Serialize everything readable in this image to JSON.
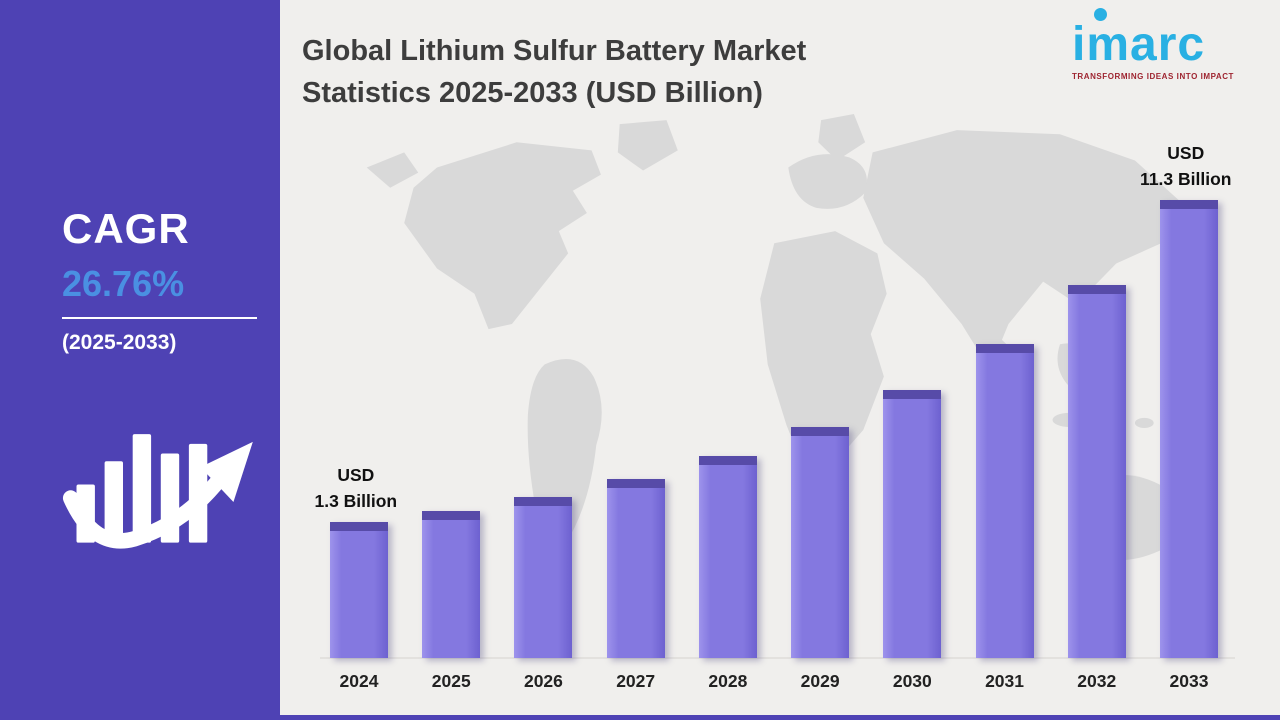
{
  "sidebar": {
    "cagr_label": "CAGR",
    "cagr_value": "26.76%",
    "period": "(2025-2033)"
  },
  "header": {
    "title_line1": "Global Lithium Sulfur Battery Market",
    "title_line2": "Statistics 2025-2033 (USD Billion)"
  },
  "logo": {
    "name": "imarc",
    "tagline": "TRANSFORMING IDEAS INTO IMPACT"
  },
  "annotations": {
    "first_line1": "USD",
    "first_line2": "1.3 Billion",
    "last_line1": "USD",
    "last_line2": "11.3 Billion"
  },
  "colors": {
    "sidebar": "#4e42b4",
    "bar": "#8478e0",
    "bar_top": "#574ba8",
    "cagr_value": "#4a90e2",
    "logo_cyan": "#29b0e3",
    "logo_red": "#9e2430",
    "background": "#f0efed",
    "map": "#d9d9d9"
  },
  "chart_data": {
    "type": "bar",
    "title": "Global Lithium Sulfur Battery Market Statistics 2025-2033 (USD Billion)",
    "unit": "USD Billion",
    "categories": [
      "2024",
      "2025",
      "2026",
      "2027",
      "2028",
      "2029",
      "2030",
      "2031",
      "2032",
      "2033"
    ],
    "values": [
      1.3,
      1.65,
      2.09,
      2.65,
      3.36,
      4.25,
      5.39,
      6.84,
      8.66,
      11.3
    ],
    "cagr": "26.76%",
    "cagr_period": "2025-2033",
    "first_bar_label": "USD 1.3 Billion",
    "last_bar_label": "USD 11.3 Billion",
    "ylim": [
      0,
      11.3
    ],
    "grid": false,
    "legend": false,
    "xlabel": "",
    "ylabel": "USD Billion"
  }
}
